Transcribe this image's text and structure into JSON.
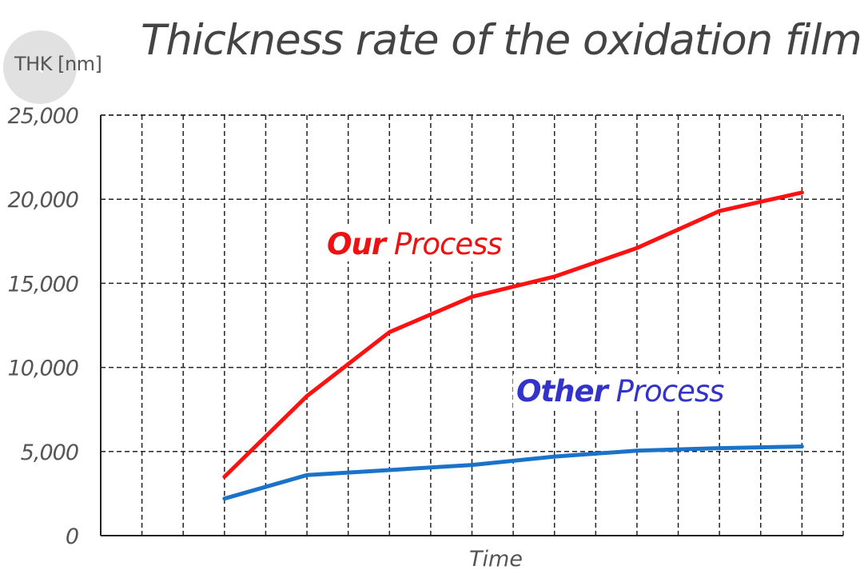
{
  "title": "Thickness rate of the oxidation film",
  "nav": {
    "back_icon_glyph": "‹"
  },
  "annotations": {
    "our": {
      "bold": "Our",
      "rest": "Process",
      "color": "#ee1111"
    },
    "other": {
      "bold": "Other",
      "rest": "Process",
      "color": "#3333cc"
    }
  },
  "chart_data": {
    "type": "line",
    "title": "Thickness rate of the oxidation film",
    "xlabel": "Time",
    "ylabel": "THK [nm]",
    "ylim": [
      0,
      25000
    ],
    "yticks": [
      "0",
      "5,000",
      "10,000",
      "15,000",
      "20,000",
      "25,000"
    ],
    "grid": true,
    "x": [
      3,
      5,
      7,
      9,
      11,
      13,
      15,
      17
    ],
    "xlim": [
      0,
      18
    ],
    "series": [
      {
        "values": [
          3500,
          8300,
          12100,
          14200,
          15400,
          17100,
          19300,
          20400
        ],
        "color": "#ff1111"
      },
      {
        "values": [
          2200,
          3600,
          3900,
          4200,
          4700,
          5050,
          5200,
          5300
        ],
        "color": "#1a73c8"
      }
    ]
  }
}
